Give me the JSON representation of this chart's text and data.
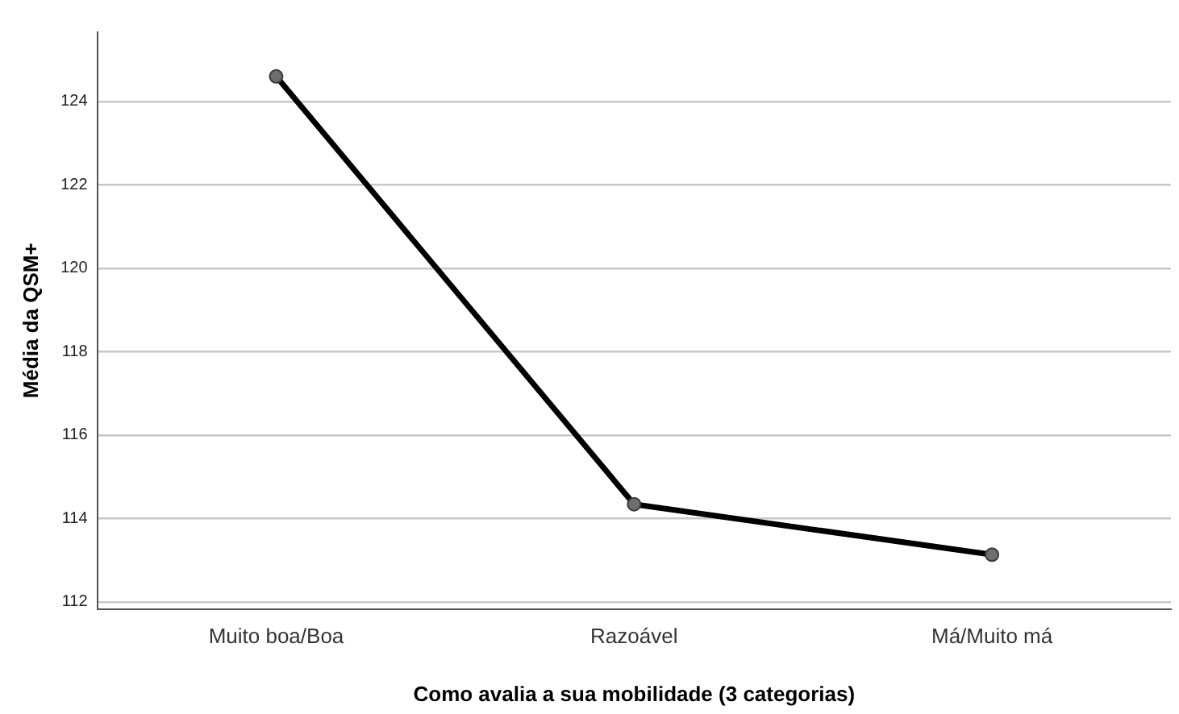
{
  "chart_data": {
    "type": "line",
    "xlabel": "Como avalia a sua mobilidade (3 categorias)",
    "ylabel": "Média da QSM+",
    "categories": [
      "Muito boa/Boa",
      "Razoável",
      "Má/Muito má"
    ],
    "series": [
      {
        "color": "#000000",
        "values": [
          124.6,
          114.34,
          113.13
        ]
      }
    ],
    "ylim": [
      111.83,
      125.66
    ],
    "yticks": [
      112,
      114,
      116,
      118,
      120,
      122,
      124
    ],
    "grid": "y",
    "legend": false,
    "marker": "circle",
    "line_style": "solid"
  }
}
